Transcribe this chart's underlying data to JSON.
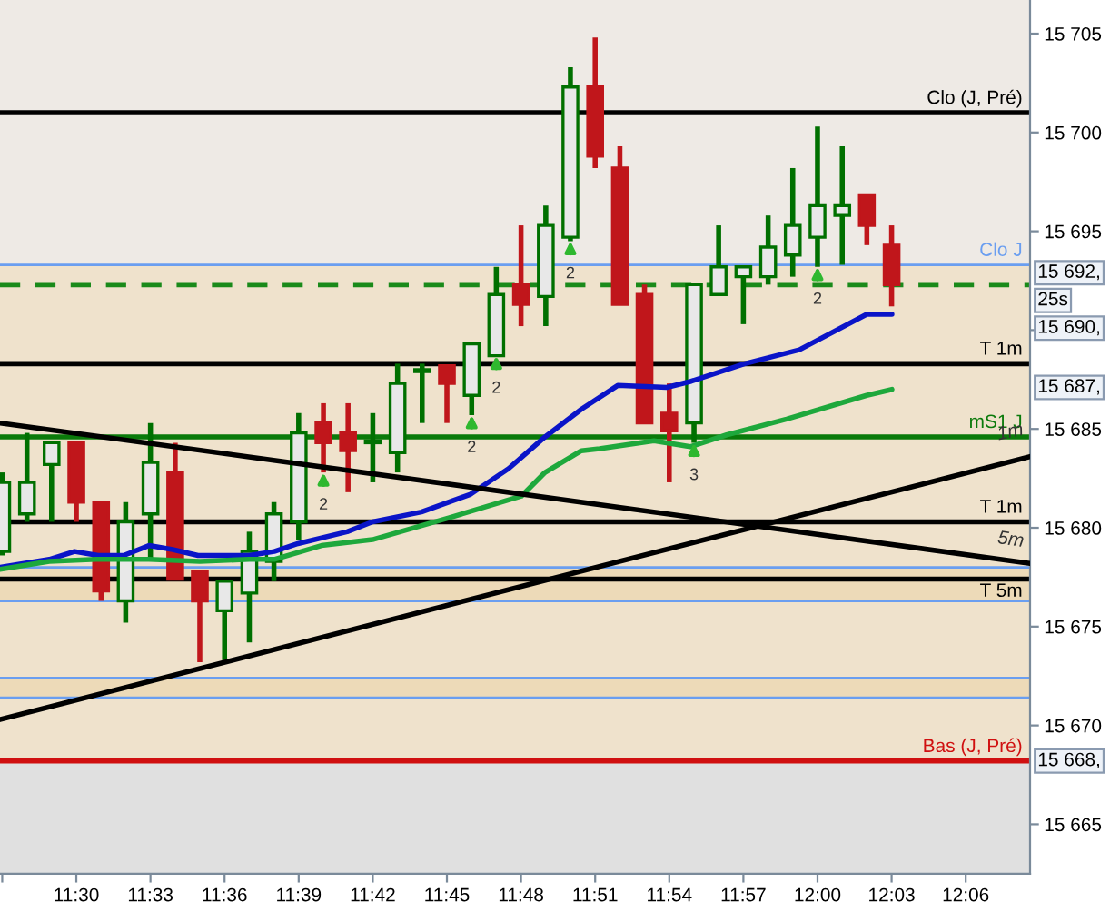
{
  "chart_data": {
    "type": "candlestick",
    "x": [
      11.45,
      11.4667,
      11.4833,
      11.5,
      11.5167,
      11.5333,
      11.55,
      11.5667,
      11.5833,
      11.6,
      11.6167,
      11.6333,
      11.65,
      11.6667,
      11.6833,
      11.7,
      11.7167,
      11.7333,
      11.75,
      11.7667,
      11.7833,
      11.8,
      11.8167,
      11.8333,
      11.85,
      11.8667,
      11.8833,
      11.9,
      11.9167,
      11.9333,
      11.95,
      11.9667,
      11.9833,
      12.0,
      12.0167,
      12.0333,
      12.05
    ],
    "ohlc": [
      [
        15678.8,
        15682.8,
        15678.6,
        15682.3
      ],
      [
        15680.7,
        15684.8,
        15680.3,
        15682.3
      ],
      [
        15683.2,
        15684.3,
        15680.3,
        15684.3
      ],
      [
        15684.3,
        15684.3,
        15680.3,
        15681.3
      ],
      [
        15681.3,
        15681.3,
        15676.3,
        15676.8
      ],
      [
        15676.3,
        15681.3,
        15675.2,
        15680.3
      ],
      [
        15680.7,
        15685.3,
        15678.3,
        15683.3
      ],
      [
        15682.8,
        15684.3,
        15677.4,
        15677.4
      ],
      [
        15677.8,
        15677.8,
        15673.2,
        15676.3
      ],
      [
        15675.8,
        15677.3,
        15673.3,
        15677.3
      ],
      [
        15676.7,
        15679.8,
        15674.2,
        15678.8
      ],
      [
        15678.3,
        15681.3,
        15677.3,
        15680.7
      ],
      [
        15680.3,
        15685.8,
        15679.4,
        15684.8
      ],
      [
        15685.3,
        15686.3,
        15682.8,
        15684.3
      ],
      [
        15684.8,
        15686.3,
        15681.8,
        15683.9
      ],
      [
        15684.3,
        15685.8,
        15682.3,
        15684.4
      ],
      [
        15683.8,
        15688.3,
        15682.8,
        15687.3
      ],
      [
        15687.9,
        15688.3,
        15685.3,
        15688.0
      ],
      [
        15688.2,
        15688.2,
        15685.3,
        15687.3
      ],
      [
        15686.7,
        15689.3,
        15685.7,
        15689.3
      ],
      [
        15688.7,
        15693.2,
        15688.7,
        15691.8
      ],
      [
        15692.3,
        15695.3,
        15690.2,
        15691.3
      ],
      [
        15691.7,
        15696.3,
        15690.2,
        15695.3
      ],
      [
        15694.7,
        15703.3,
        15694.5,
        15702.3
      ],
      [
        15702.3,
        15704.8,
        15698.2,
        15698.8
      ],
      [
        15698.2,
        15699.3,
        15691.3,
        15691.3
      ],
      [
        15691.8,
        15692.3,
        15685.3,
        15685.3
      ],
      [
        15685.8,
        15687.3,
        15682.3,
        15684.9
      ],
      [
        15685.3,
        15692.3,
        15684.3,
        15692.3
      ],
      [
        15691.8,
        15695.3,
        15691.8,
        15693.2
      ],
      [
        15692.7,
        15693.2,
        15690.3,
        15693.2
      ],
      [
        15692.7,
        15695.8,
        15692.3,
        15694.2
      ],
      [
        15693.8,
        15698.2,
        15692.7,
        15695.3
      ],
      [
        15694.7,
        15700.3,
        15693.2,
        15696.3
      ],
      [
        15695.8,
        15699.3,
        15693.3,
        15696.3
      ],
      [
        15696.8,
        15696.8,
        15694.3,
        15695.3
      ],
      [
        15694.3,
        15695.3,
        15691.2,
        15692.3
      ]
    ],
    "colors": [
      "#007000",
      "#007000",
      "#007000",
      "#c0161b",
      "#c0161b",
      "#007000",
      "#007000",
      "#c0161b",
      "#c0161b",
      "#007000",
      "#007000",
      "#007000",
      "#007000",
      "#c0161b",
      "#c0161b",
      "#007000",
      "#007000",
      "#007000",
      "#c0161b",
      "#007000",
      "#007000",
      "#c0161b",
      "#007000",
      "#007000",
      "#c0161b",
      "#c0161b",
      "#c0161b",
      "#c0161b",
      "#007000",
      "#007000",
      "#007000",
      "#007000",
      "#007000",
      "#007000",
      "#007000",
      "#c0161b",
      "#c0161b"
    ],
    "series": [
      {
        "type": "line",
        "color": "#0a14c8",
        "x": [
          11.4485,
          11.4817,
          11.4988,
          11.5147,
          11.5319,
          11.549,
          11.565,
          11.5821,
          11.5993,
          11.6165,
          11.6335,
          11.6495,
          11.6827,
          11.6998,
          11.7328,
          11.766,
          11.7917,
          11.8162,
          11.8407,
          11.8652,
          11.8983,
          11.9142,
          11.951,
          11.9877,
          12.0332,
          12.0502
        ],
        "values": [
          15678.0,
          15678.4,
          15678.8,
          15678.6,
          15678.6,
          15679.1,
          15678.9,
          15678.6,
          15678.6,
          15678.6,
          15678.8,
          15679.2,
          15679.8,
          15680.3,
          15680.8,
          15681.7,
          15683.0,
          15684.6,
          15686.0,
          15687.2,
          15687.1,
          15687.4,
          15688.3,
          15689.0,
          15690.8,
          15690.8
        ]
      },
      {
        "type": "line",
        "color": "#1ea83c",
        "x": [
          11.4485,
          11.4817,
          11.5135,
          11.549,
          11.5833,
          11.6165,
          11.6335,
          11.6654,
          11.6998,
          11.7512,
          11.8002,
          11.8162,
          11.8407,
          11.8529,
          11.8897,
          11.9142,
          11.9387,
          11.9792,
          12.0332,
          12.0502
        ],
        "values": [
          15677.9,
          15678.3,
          15678.4,
          15678.4,
          15678.3,
          15678.4,
          15678.4,
          15679.1,
          15679.4,
          15680.5,
          15681.6,
          15682.8,
          15683.9,
          15684.0,
          15684.4,
          15684.1,
          15684.7,
          15685.5,
          15686.7,
          15687.0
        ]
      },
      {
        "type": "line",
        "name": "5m",
        "color": "#000000",
        "x": [
          11.4485,
          12.1434
        ],
        "values": [
          15685.3,
          15678.2
        ]
      },
      {
        "type": "line",
        "name": "1m",
        "color": "#000000",
        "x": [
          11.4485,
          12.1434
        ],
        "values": [
          15670.3,
          15683.6
        ]
      }
    ],
    "bands": [
      {
        "axis": "y",
        "from": 15693.3,
        "to": 15706.7,
        "color": "#eeeae5"
      },
      {
        "axis": "y",
        "from": 15668.2,
        "to": 15693.3,
        "color": "#efe2cc"
      },
      {
        "axis": "y",
        "from": 15676.3,
        "to": 15678.0,
        "color": "#eddab8"
      },
      {
        "axis": "y",
        "from": 15671.4,
        "to": 15672.4,
        "color": "#eddab8"
      },
      {
        "axis": "y",
        "from": 15662.5,
        "to": 15668.2,
        "color": "#e0e0e0"
      }
    ],
    "ref_lines": [
      {
        "axis": "y",
        "value": 15701.0,
        "label": "Clo (J, Pré)",
        "color": "#000000"
      },
      {
        "axis": "y",
        "value": 15693.3,
        "label": "Clo J",
        "color": "#6a9ef0"
      },
      {
        "axis": "y",
        "value": 15692.3,
        "color": "#1a8a1a",
        "line_style": "dashed"
      },
      {
        "axis": "y",
        "value": 15688.3,
        "label": "T 1m",
        "color": "#000000"
      },
      {
        "axis": "y",
        "value": 15684.6,
        "label": "mS1 J",
        "color": "#0a7a0a"
      },
      {
        "axis": "y",
        "value": 15680.3,
        "label": "T 1m",
        "color": "#000000"
      },
      {
        "axis": "y",
        "value": 15678.0,
        "color": "#6a9ef0"
      },
      {
        "axis": "y",
        "value": 15677.4,
        "label": "T 5m",
        "color": "#000000"
      },
      {
        "axis": "y",
        "value": 15676.3,
        "color": "#6a9ef0"
      },
      {
        "axis": "y",
        "value": 15672.4,
        "color": "#6a9ef0"
      },
      {
        "axis": "y",
        "value": 15671.4,
        "color": "#6a9ef0"
      },
      {
        "axis": "y",
        "value": 15668.2,
        "label": "Bas (J, Pré)",
        "color": "#d01010"
      }
    ],
    "annotations": [
      {
        "text": "2",
        "x": 11.6667,
        "y": 15682.8
      },
      {
        "text": "2",
        "x": 11.7667,
        "y": 15685.7
      },
      {
        "text": "2",
        "x": 11.7833,
        "y": 15688.7
      },
      {
        "text": "2",
        "x": 11.8333,
        "y": 15694.5
      },
      {
        "text": "3",
        "x": 11.9167,
        "y": 15684.3
      },
      {
        "text": "2",
        "x": 12.0,
        "y": 15693.2
      },
      {
        "text": "15 692,",
        "x": 12.1434,
        "y": 15692.9
      },
      {
        "text": "25s",
        "x": 12.1434,
        "y": 15691.5
      },
      {
        "text": "15 690,",
        "x": 12.1434,
        "y": 15690.1
      },
      {
        "text": "15 687,",
        "x": 12.1434,
        "y": 15687.1
      },
      {
        "text": "15 668,",
        "x": 12.1434,
        "y": 15668.2
      }
    ],
    "xlim": [
      11.4485,
      12.1434
    ],
    "ylim": [
      15662.5,
      15706.7
    ],
    "xticks": [
      {
        "value": 11.45,
        "label": null
      },
      {
        "value": 11.5,
        "label": "11:30"
      },
      {
        "value": 11.55,
        "label": "11:33"
      },
      {
        "value": 11.6,
        "label": "11:36"
      },
      {
        "value": 11.65,
        "label": "11:39"
      },
      {
        "value": 11.7,
        "label": "11:42"
      },
      {
        "value": 11.75,
        "label": "11:45"
      },
      {
        "value": 11.8,
        "label": "11:48"
      },
      {
        "value": 11.85,
        "label": "11:51"
      },
      {
        "value": 11.9,
        "label": "11:54"
      },
      {
        "value": 11.95,
        "label": "11:57"
      },
      {
        "value": 12.0,
        "label": "12:00"
      },
      {
        "value": 12.05,
        "label": "12:03"
      },
      {
        "value": 12.1,
        "label": "12:06"
      }
    ],
    "yticks": [
      {
        "value": 15665,
        "label": "15 665"
      },
      {
        "value": 15670,
        "label": "15 670"
      },
      {
        "value": 15675,
        "label": "15 675"
      },
      {
        "value": 15680,
        "label": "15 680"
      },
      {
        "value": 15685,
        "label": "15 685"
      },
      {
        "value": 15690,
        "label": null
      },
      {
        "value": 15695,
        "label": "15 695"
      },
      {
        "value": 15700,
        "label": "15 700"
      },
      {
        "value": 15705,
        "label": "15 705"
      }
    ],
    "grid": false,
    "legend": false
  }
}
